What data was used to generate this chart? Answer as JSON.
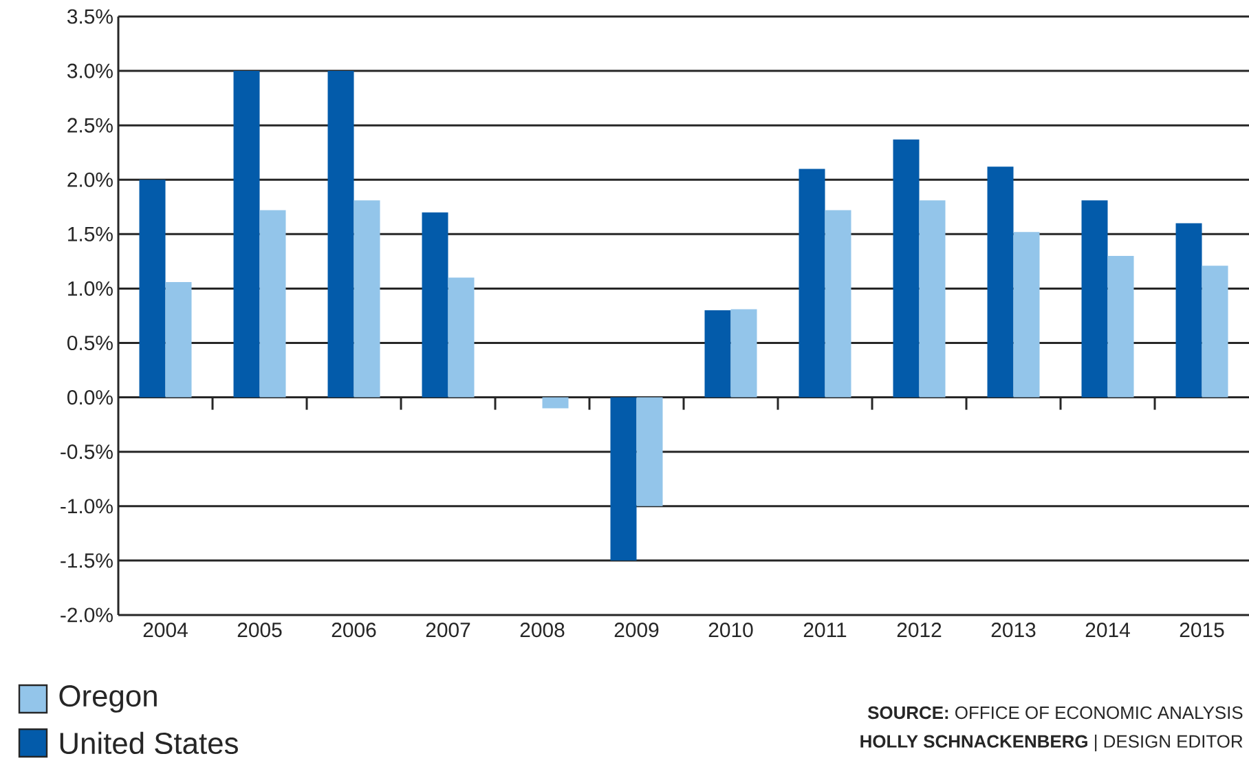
{
  "chart_data": {
    "type": "bar",
    "categories": [
      "2004",
      "2005",
      "2006",
      "2007",
      "2008",
      "2009",
      "2010",
      "2011",
      "2012",
      "2013",
      "2014",
      "2015"
    ],
    "series": [
      {
        "name": "United States",
        "color": "#035baa",
        "values": [
          2.0,
          3.0,
          3.0,
          1.7,
          0,
          -1.5,
          0.8,
          2.1,
          2.37,
          2.12,
          1.81,
          1.6
        ]
      },
      {
        "name": "Oregon",
        "color": "#93c5ea",
        "values": [
          1.06,
          1.72,
          1.81,
          1.1,
          -0.1,
          -1.0,
          0.81,
          1.72,
          1.81,
          1.52,
          1.3,
          1.21
        ]
      }
    ],
    "ylim": [
      -2.0,
      3.5
    ],
    "yticks": [
      {
        "value": -2.0,
        "label": "-2.0%"
      },
      {
        "value": -1.5,
        "label": "-1.5%"
      },
      {
        "value": -1.0,
        "label": "-1.0%"
      },
      {
        "value": -0.5,
        "label": "-0.5%"
      },
      {
        "value": 0.0,
        "label": "0.0%"
      },
      {
        "value": 0.5,
        "label": "0.5%"
      },
      {
        "value": 1.0,
        "label": "1.0%"
      },
      {
        "value": 1.5,
        "label": "1.5%"
      },
      {
        "value": 2.0,
        "label": "2.0%"
      },
      {
        "value": 2.5,
        "label": "2.5%"
      },
      {
        "value": 3.0,
        "label": "3.0%"
      },
      {
        "value": 3.5,
        "label": "3.5%"
      }
    ],
    "grid": "y",
    "legend": "bottom left",
    "annotations": [
      "**SOURCE:** OFFICE OF ECONOMIC ANALYSIS",
      "**HOLLY SCHNACKENBERG** | DESIGN EDITOR"
    ]
  }
}
